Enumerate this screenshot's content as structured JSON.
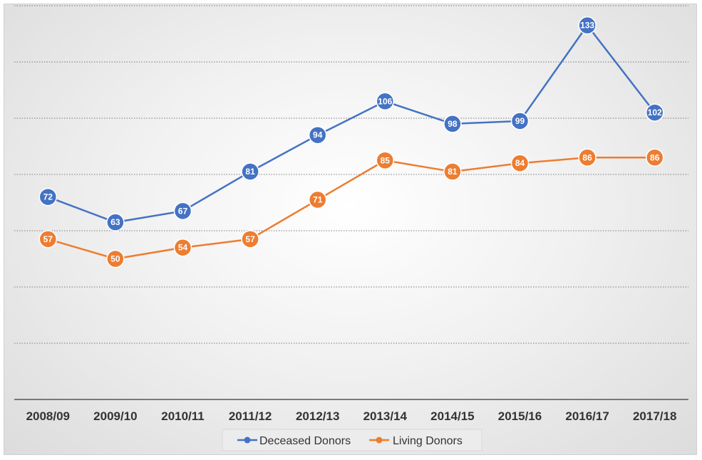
{
  "chart_data": {
    "type": "line",
    "title": "",
    "xlabel": "",
    "ylabel": "",
    "categories": [
      "2008/09",
      "2009/10",
      "2010/11",
      "2011/12",
      "2012/13",
      "2013/14",
      "2014/15",
      "2015/16",
      "2016/17",
      "2017/18"
    ],
    "ylim": [
      0,
      140
    ],
    "grid": true,
    "legend_position": "bottom",
    "series": [
      {
        "name": "Deceased Donors",
        "color": "#4472c4",
        "values": [
          72,
          63,
          67,
          81,
          94,
          106,
          98,
          99,
          133,
          102
        ]
      },
      {
        "name": "Living Donors",
        "color": "#ed7d31",
        "values": [
          57,
          50,
          54,
          57,
          71,
          85,
          81,
          84,
          86,
          86
        ]
      }
    ]
  }
}
